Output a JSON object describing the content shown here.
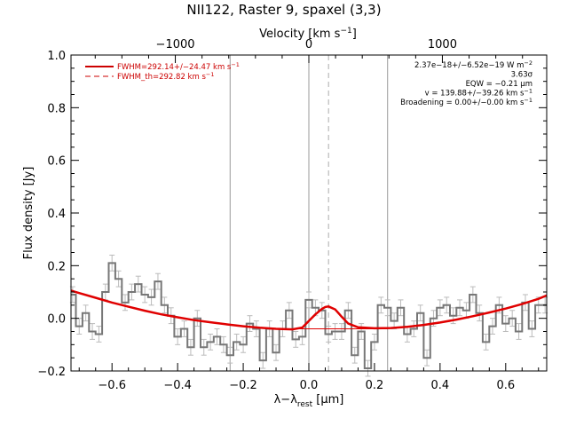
{
  "chart_data": {
    "type": "line",
    "title": "NII122, Raster 9, spaxel (3,3)",
    "xlabel": "λ−λ",
    "xlabel_sub": "rest",
    "xlabel_unit": " [μm]",
    "ylabel": "Flux density [Jy]",
    "top_axis_label": "Velocity [km s",
    "top_axis_label_exp": "−1",
    "top_axis_label_end": "]",
    "xlim": [
      -0.725,
      0.725
    ],
    "ylim": [
      -0.2,
      1.0
    ],
    "x_ticks": [
      -0.6,
      -0.4,
      -0.2,
      0.0,
      0.2,
      0.4,
      0.6
    ],
    "x_tick_labels": [
      "−0.6",
      "−0.4",
      "−0.2",
      "0.0",
      "0.2",
      "0.4",
      "0.6"
    ],
    "y_ticks": [
      -0.2,
      0.0,
      0.2,
      0.4,
      0.6,
      0.8,
      1.0
    ],
    "y_tick_labels": [
      "−0.2",
      "0.0",
      "0.2",
      "0.4",
      "0.6",
      "0.8",
      "1.0"
    ],
    "top_ticks": [
      -1000,
      0,
      1000
    ],
    "top_tick_labels": [
      "−1000",
      "0",
      "1000"
    ],
    "km_per_um": 2457,
    "vlines": [
      -0.24,
      0.0,
      0.24
    ],
    "dashed_vline": 0.06,
    "series": [
      {
        "name": "spectrum",
        "style": "step",
        "color": "#777777",
        "x": [
          -0.72,
          -0.7,
          -0.68,
          -0.66,
          -0.64,
          -0.62,
          -0.6,
          -0.58,
          -0.56,
          -0.54,
          -0.52,
          -0.5,
          -0.48,
          -0.46,
          -0.44,
          -0.42,
          -0.4,
          -0.38,
          -0.36,
          -0.34,
          -0.32,
          -0.3,
          -0.28,
          -0.26,
          -0.24,
          -0.22,
          -0.2,
          -0.18,
          -0.16,
          -0.14,
          -0.12,
          -0.1,
          -0.08,
          -0.06,
          -0.04,
          -0.02,
          0.0,
          0.02,
          0.04,
          0.06,
          0.08,
          0.1,
          0.12,
          0.14,
          0.16,
          0.18,
          0.2,
          0.22,
          0.24,
          0.26,
          0.28,
          0.3,
          0.32,
          0.34,
          0.36,
          0.38,
          0.4,
          0.42,
          0.44,
          0.46,
          0.48,
          0.5,
          0.52,
          0.54,
          0.56,
          0.58,
          0.6,
          0.62,
          0.64,
          0.66,
          0.68,
          0.7,
          0.72
        ],
        "y": [
          0.09,
          -0.03,
          0.02,
          -0.05,
          -0.06,
          0.1,
          0.21,
          0.15,
          0.06,
          0.1,
          0.13,
          0.09,
          0.08,
          0.14,
          0.05,
          0.01,
          -0.07,
          -0.04,
          -0.11,
          0.0,
          -0.11,
          -0.09,
          -0.07,
          -0.1,
          -0.14,
          -0.09,
          -0.1,
          -0.02,
          -0.04,
          -0.16,
          -0.04,
          -0.13,
          -0.04,
          0.03,
          -0.08,
          -0.07,
          0.07,
          0.04,
          0.03,
          -0.06,
          -0.05,
          -0.05,
          0.03,
          -0.14,
          -0.05,
          -0.19,
          -0.09,
          0.05,
          0.04,
          -0.01,
          0.04,
          -0.06,
          -0.04,
          0.02,
          -0.15,
          0.0,
          0.04,
          0.05,
          0.01,
          0.04,
          0.03,
          0.09,
          0.02,
          -0.09,
          -0.03,
          0.05,
          -0.02,
          0.0,
          -0.05,
          0.06,
          -0.04,
          0.05,
          0.05
        ],
        "err": 0.03
      },
      {
        "name": "fit",
        "style": "line",
        "color": "#e00000",
        "x": [
          -0.725,
          -0.7,
          -0.65,
          -0.6,
          -0.55,
          -0.5,
          -0.45,
          -0.4,
          -0.35,
          -0.3,
          -0.25,
          -0.2,
          -0.15,
          -0.1,
          -0.05,
          -0.02,
          0.0,
          0.02,
          0.04,
          0.05,
          0.06,
          0.08,
          0.1,
          0.12,
          0.15,
          0.2,
          0.25,
          0.3,
          0.35,
          0.4,
          0.45,
          0.5,
          0.55,
          0.6,
          0.65,
          0.7,
          0.725
        ],
        "y": [
          0.105,
          0.096,
          0.078,
          0.06,
          0.044,
          0.029,
          0.015,
          0.004,
          -0.007,
          -0.015,
          -0.023,
          -0.03,
          -0.036,
          -0.04,
          -0.042,
          -0.035,
          -0.01,
          0.015,
          0.036,
          0.043,
          0.045,
          0.034,
          0.006,
          -0.02,
          -0.034,
          -0.038,
          -0.037,
          -0.032,
          -0.025,
          -0.016,
          -0.005,
          0.008,
          0.022,
          0.037,
          0.054,
          0.074,
          0.087
        ]
      },
      {
        "name": "continuum",
        "style": "line",
        "color": "#e00000",
        "x": [
          -0.12,
          0.24
        ],
        "y": [
          -0.04,
          -0.04
        ]
      }
    ],
    "legend": {
      "placement": "top-left",
      "color": "#cc0000",
      "items": [
        {
          "text": "FWHM=292.14+/−24.47 km s",
          "sup": "−1",
          "line": "solid"
        },
        {
          "text": "FWHM_th=292.82 km s",
          "sup": "−1",
          "line": "dashed"
        }
      ]
    },
    "annotations": {
      "placement": "top-right",
      "lines": [
        {
          "text": "2.37e−18+/−6.52e−19 W m",
          "sup": "−2"
        },
        {
          "text": "3.63σ",
          "sup": ""
        },
        {
          "text": "EQW = −0.21 μm",
          "sup": ""
        },
        {
          "text": "v = 139.88+/−39.26 km s",
          "sup": "−1"
        },
        {
          "text": "Broadening = 0.00+/−0.00 km s",
          "sup": "−1"
        }
      ]
    }
  }
}
